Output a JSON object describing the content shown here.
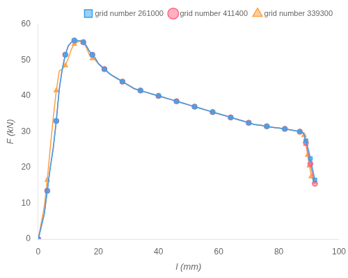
{
  "chart_data": {
    "type": "line",
    "xlabel": "l (mm)",
    "ylabel": "F (kN)",
    "xlim": [
      0,
      100
    ],
    "ylim": [
      0,
      60
    ],
    "xticks": [
      0,
      20,
      40,
      60,
      80,
      100
    ],
    "yticks": [
      0,
      10,
      20,
      30,
      40,
      50,
      60
    ],
    "grid": false,
    "legend": "upper right",
    "series": [
      {
        "name": "grid number 261000",
        "marker": "square",
        "x": [
          0,
          1,
          2,
          3,
          4,
          5,
          6,
          7,
          8,
          9,
          10,
          11,
          12,
          13,
          14,
          15,
          16,
          17,
          18,
          19,
          20,
          22,
          24,
          26,
          28,
          30,
          32,
          34,
          36,
          38,
          40,
          42,
          44,
          46,
          48,
          50,
          52,
          54,
          56,
          58,
          60,
          62,
          64,
          66,
          68,
          70,
          72,
          74,
          76,
          78,
          80,
          82,
          84,
          86,
          87,
          88,
          88.5,
          89,
          89.5,
          90,
          90.5,
          91,
          91.5,
          92
        ],
        "values": [
          0,
          3.5,
          7.0,
          13.5,
          20.0,
          25.5,
          33.0,
          42.0,
          47.5,
          51.5,
          54.0,
          55.0,
          55.5,
          55.5,
          55.3,
          55.0,
          54.0,
          52.5,
          51.5,
          50.5,
          49.0,
          47.5,
          46.0,
          45.0,
          44.0,
          43.0,
          42.0,
          41.5,
          41.0,
          40.5,
          40.0,
          39.5,
          39.0,
          38.5,
          38.0,
          37.5,
          37.0,
          36.5,
          36.0,
          35.5,
          35.0,
          34.5,
          34.0,
          33.5,
          33.0,
          32.5,
          32.0,
          31.8,
          31.5,
          31.2,
          31.0,
          30.8,
          30.5,
          30.2,
          30.0,
          29.8,
          29.0,
          27.5,
          26.0,
          24.5,
          22.5,
          20.5,
          18.5,
          16.5
        ]
      },
      {
        "name": "grid number 411400",
        "marker": "circle",
        "x": [
          0,
          1,
          2,
          3,
          4,
          5,
          6,
          7,
          8,
          9,
          10,
          11,
          12,
          13,
          14,
          15,
          16,
          17,
          18,
          19,
          20,
          22,
          24,
          26,
          28,
          30,
          32,
          34,
          36,
          38,
          40,
          42,
          44,
          46,
          48,
          50,
          52,
          54,
          56,
          58,
          60,
          62,
          64,
          66,
          68,
          70,
          72,
          74,
          76,
          78,
          80,
          82,
          84,
          86,
          87,
          88,
          88.5,
          89,
          89.5,
          90,
          90.5,
          91,
          91.5,
          92
        ],
        "values": [
          0,
          3.5,
          7.0,
          13.5,
          20.0,
          25.5,
          33.0,
          42.0,
          47.5,
          51.5,
          54.0,
          55.0,
          55.5,
          55.5,
          55.3,
          55.0,
          54.0,
          52.5,
          51.5,
          50.5,
          49.0,
          47.5,
          46.0,
          45.0,
          44.0,
          43.0,
          42.0,
          41.5,
          41.0,
          40.5,
          40.0,
          39.5,
          39.0,
          38.5,
          38.0,
          37.5,
          37.0,
          36.5,
          36.0,
          35.5,
          35.0,
          34.5,
          34.0,
          33.5,
          33.0,
          32.5,
          32.0,
          31.8,
          31.5,
          31.2,
          31.0,
          30.8,
          30.5,
          30.2,
          30.0,
          29.8,
          29.0,
          27.0,
          25.0,
          23.0,
          21.0,
          19.0,
          17.0,
          15.5
        ]
      },
      {
        "name": "grid number 339300",
        "marker": "triangle",
        "x": [
          0,
          1,
          2,
          3,
          4,
          5,
          6,
          7,
          8,
          9,
          10,
          11,
          12,
          13,
          14,
          15,
          16,
          17,
          18,
          19,
          20,
          22,
          24,
          26,
          28,
          30,
          32,
          34,
          36,
          38,
          40,
          42,
          44,
          46,
          48,
          50,
          52,
          54,
          56,
          58,
          60,
          62,
          64,
          66,
          68,
          70,
          72,
          74,
          76,
          78,
          80,
          82,
          84,
          86,
          87,
          88,
          88.2,
          88.4,
          88.6,
          88.8,
          89.0,
          89.2,
          89.4,
          89.6,
          89.8,
          90,
          90.2,
          90.4,
          90.6,
          90.8,
          91,
          91.5,
          92
        ],
        "values": [
          0,
          4.5,
          9.0,
          16.5,
          25.5,
          34.0,
          41.5,
          47.0,
          47.5,
          48.5,
          50.5,
          53.0,
          54.5,
          55.0,
          55.5,
          55.0,
          53.5,
          51.5,
          50.5,
          50.0,
          49.0,
          47.5,
          46.0,
          45.0,
          44.0,
          43.0,
          42.0,
          41.5,
          41.0,
          40.5,
          40.0,
          39.5,
          39.0,
          38.5,
          38.0,
          37.5,
          37.0,
          36.5,
          36.0,
          35.5,
          35.0,
          34.5,
          34.0,
          33.5,
          33.0,
          32.5,
          32.0,
          31.8,
          31.5,
          31.2,
          31.0,
          30.8,
          30.5,
          30.2,
          30.0,
          29.8,
          29.5,
          29.0,
          28.5,
          27.5,
          26.5,
          25.5,
          24.5,
          23.5,
          22.5,
          21.5,
          20.5,
          19.5,
          18.5,
          17.5,
          17.0,
          16.5,
          16.0
        ]
      }
    ]
  }
}
